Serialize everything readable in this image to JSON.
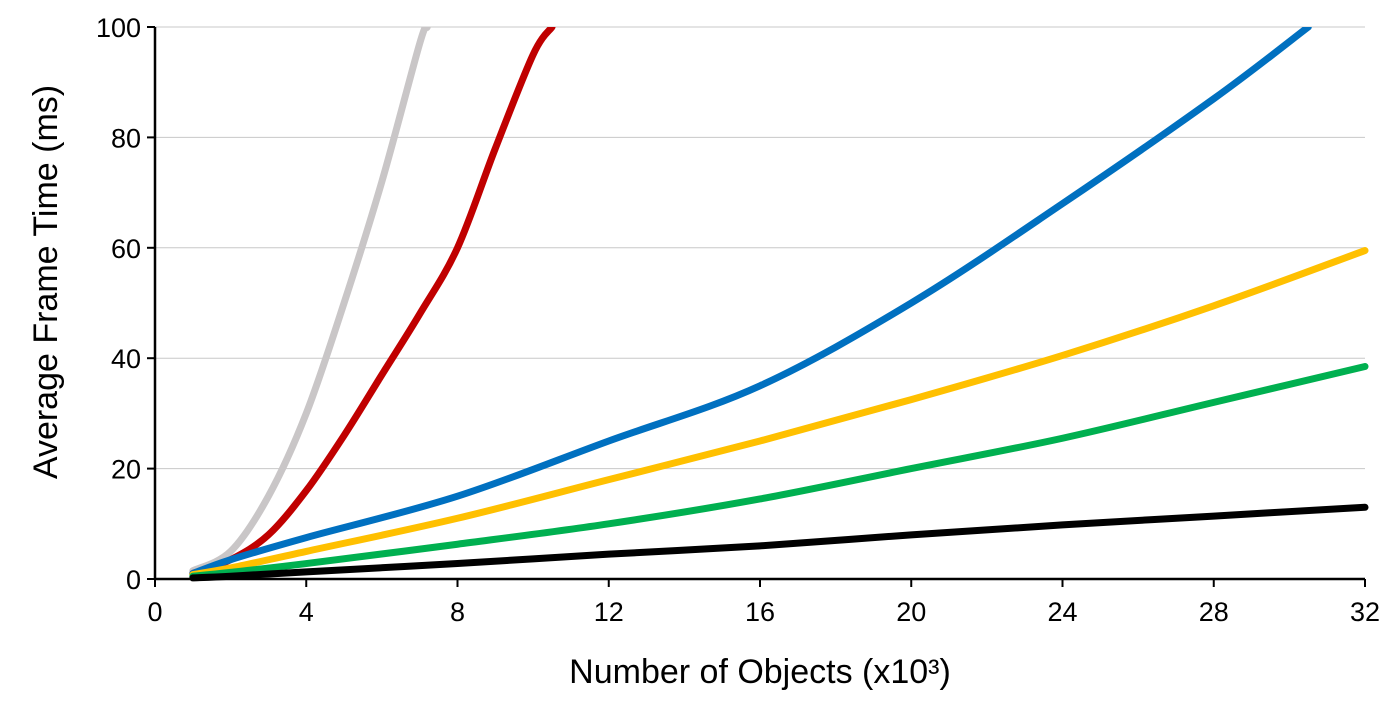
{
  "chart_data": {
    "type": "line",
    "title": "",
    "xlabel": "Number of Objects (x10³)",
    "ylabel": "Average Frame Time (ms)",
    "xlim": [
      0,
      32
    ],
    "ylim": [
      0,
      100
    ],
    "xticks": [
      "0",
      "4",
      "8",
      "12",
      "16",
      "20",
      "24",
      "28",
      "32"
    ],
    "yticks": [
      "0",
      "20",
      "40",
      "60",
      "80",
      "100"
    ],
    "grid": "horizontal",
    "legend": "none",
    "series": [
      {
        "color": "#c9c6c7",
        "points": [
          [
            1,
            1.5
          ],
          [
            2,
            5
          ],
          [
            3,
            15
          ],
          [
            4,
            30
          ],
          [
            5,
            50
          ],
          [
            6,
            72
          ],
          [
            7,
            97
          ],
          [
            7.2,
            100
          ]
        ]
      },
      {
        "color": "#c00000",
        "points": [
          [
            1,
            1
          ],
          [
            2,
            3.5
          ],
          [
            3,
            8
          ],
          [
            4,
            16
          ],
          [
            5,
            26
          ],
          [
            6,
            37
          ],
          [
            7,
            48
          ],
          [
            8,
            60
          ],
          [
            9,
            78
          ],
          [
            10,
            95
          ],
          [
            10.5,
            100
          ]
        ]
      },
      {
        "color": "#0070c0",
        "points": [
          [
            1,
            1
          ],
          [
            2,
            3.5
          ],
          [
            4,
            7.5
          ],
          [
            8,
            15
          ],
          [
            12,
            25
          ],
          [
            16,
            35
          ],
          [
            20,
            50
          ],
          [
            24,
            68
          ],
          [
            28,
            87
          ],
          [
            30.5,
            100
          ]
        ]
      },
      {
        "color": "#ffc000",
        "points": [
          [
            1,
            0.8
          ],
          [
            2,
            2
          ],
          [
            4,
            5
          ],
          [
            8,
            11
          ],
          [
            12,
            18
          ],
          [
            16,
            25
          ],
          [
            20,
            32.5
          ],
          [
            24,
            40.5
          ],
          [
            28,
            49.5
          ],
          [
            32,
            59.5
          ]
        ]
      },
      {
        "color": "#00b050",
        "points": [
          [
            1,
            0.5
          ],
          [
            2,
            1.2
          ],
          [
            4,
            2.8
          ],
          [
            8,
            6.3
          ],
          [
            12,
            10
          ],
          [
            16,
            14.5
          ],
          [
            20,
            20
          ],
          [
            24,
            25.5
          ],
          [
            28,
            32
          ],
          [
            32,
            38.5
          ]
        ]
      },
      {
        "color": "#000000",
        "points": [
          [
            1,
            0.2
          ],
          [
            2,
            0.5
          ],
          [
            4,
            1.3
          ],
          [
            8,
            2.8
          ],
          [
            12,
            4.5
          ],
          [
            16,
            6
          ],
          [
            20,
            8
          ],
          [
            24,
            9.8
          ],
          [
            28,
            11.4
          ],
          [
            32,
            13
          ]
        ]
      }
    ]
  }
}
